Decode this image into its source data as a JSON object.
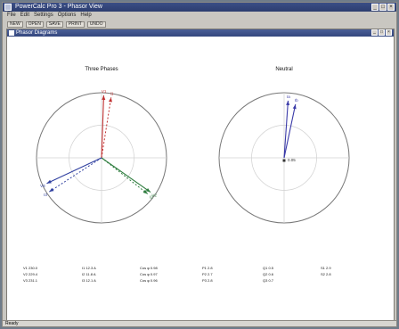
{
  "window": {
    "title": "PowerCalc Pro 3 - Phasor View"
  },
  "menus": [
    {
      "label": "File"
    },
    {
      "label": "Edit"
    },
    {
      "label": "Settings"
    },
    {
      "label": "Options"
    },
    {
      "label": "Help"
    }
  ],
  "toolbar": {
    "items": [
      {
        "label": "NEW"
      },
      {
        "label": "OPEN"
      },
      {
        "label": "SAVE"
      },
      {
        "label": "PRINT"
      },
      {
        "label": "UNDO"
      }
    ]
  },
  "child": {
    "title": "Phasor Diagrams"
  },
  "diagrams": [
    {
      "title": "Three Phases",
      "center_label": "",
      "phasors": [
        {
          "label": "V1",
          "color": "#c03030",
          "style": "solid",
          "angle": 88,
          "length": 0.96
        },
        {
          "label": "I1",
          "color": "#c03030",
          "style": "dashed",
          "angle": 81,
          "length": 0.94
        },
        {
          "label": "V2",
          "color": "#2f7d3f",
          "style": "solid",
          "angle": -35,
          "length": 0.92
        },
        {
          "label": "I2",
          "color": "#2f7d3f",
          "style": "dashed",
          "angle": -38,
          "length": 0.9
        },
        {
          "label": "V3",
          "color": "#3040a0",
          "style": "solid",
          "angle": 205,
          "length": 0.93
        },
        {
          "label": "I3",
          "color": "#3040a0",
          "style": "dashed",
          "angle": 213,
          "length": 0.96
        }
      ]
    },
    {
      "title": "Neutral",
      "center_label": "0.05",
      "phasors": [
        {
          "label": "Ia",
          "color": "#3a3aa8",
          "style": "solid",
          "angle": 86,
          "length": 0.88
        },
        {
          "label": "Ib",
          "color": "#3a3aa8",
          "style": "solid",
          "angle": 78,
          "length": 0.84
        }
      ]
    }
  ],
  "table": {
    "rows": [
      [
        "V1 230.0",
        "I1 12.3 A",
        "Cos φ 0.98",
        "P1 2.8",
        "Q1 0.5",
        "S1 2.9"
      ],
      [
        "V2 229.4",
        "I2 11.8 A",
        "Cos φ 0.97",
        "P2 2.7",
        "Q2 0.6",
        "S2 2.8"
      ],
      [
        "V3 231.1",
        "I3 12.1 A",
        "Cos φ 0.96",
        "P3 2.8",
        "Q3 0.7",
        ""
      ]
    ]
  },
  "status": {
    "text": "Ready"
  }
}
